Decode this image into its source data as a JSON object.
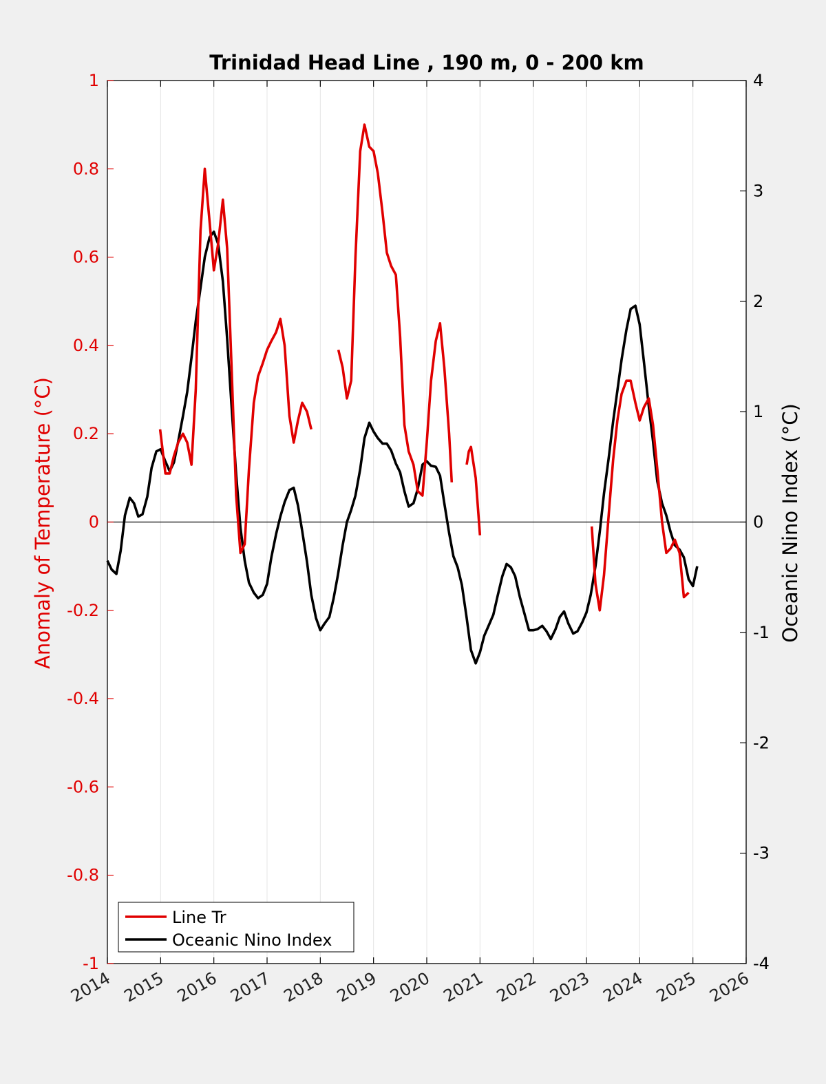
{
  "chart_data": {
    "type": "line",
    "title": "Trinidad Head Line , 190 m, 0 - 200 km",
    "ylabel_left": "Anomaly of Temperature (°C)",
    "ylabel_right": "Oceanic Nino Index (°C)",
    "xlim": [
      2014,
      2026
    ],
    "ylim_left": [
      -1,
      1
    ],
    "ylim_right": [
      -4,
      4
    ],
    "x_ticks": [
      "2014",
      "2015",
      "2016",
      "2017",
      "2018",
      "2019",
      "2020",
      "2021",
      "2022",
      "2023",
      "2024",
      "2025",
      "2026"
    ],
    "y_ticks_left": [
      "1",
      "0.8",
      "0.6",
      "0.4",
      "0.2",
      "0",
      "-0.2",
      "-0.4",
      "-0.6",
      "-0.8",
      "-1"
    ],
    "y_ticks_right": [
      "4",
      "3",
      "2",
      "1",
      "0",
      "-1",
      "-2",
      "-3",
      "-4"
    ],
    "grid": "vertical",
    "legend_position": "bottom-left",
    "colors": {
      "line_tr": "#e00000",
      "oni": "#000000",
      "axis_left": "#e00000",
      "axis_right": "#000000"
    },
    "series": [
      {
        "name": "Line Tr",
        "axis": "left",
        "segments": [
          [
            [
              2014.99,
              0.21
            ],
            [
              2015.09,
              0.11
            ],
            [
              2015.17,
              0.11
            ],
            [
              2015.25,
              0.15
            ],
            [
              2015.33,
              0.18
            ],
            [
              2015.42,
              0.2
            ],
            [
              2015.5,
              0.18
            ],
            [
              2015.58,
              0.13
            ],
            [
              2015.66,
              0.3
            ],
            [
              2015.75,
              0.66
            ],
            [
              2015.83,
              0.8
            ],
            [
              2015.92,
              0.68
            ],
            [
              2016.0,
              0.57
            ],
            [
              2016.08,
              0.63
            ],
            [
              2016.17,
              0.73
            ],
            [
              2016.25,
              0.62
            ],
            [
              2016.33,
              0.36
            ],
            [
              2016.42,
              0.06
            ],
            [
              2016.5,
              -0.07
            ],
            [
              2016.58,
              -0.05
            ],
            [
              2016.66,
              0.12
            ],
            [
              2016.75,
              0.27
            ],
            [
              2016.83,
              0.33
            ],
            [
              2016.92,
              0.36
            ],
            [
              2017.0,
              0.39
            ],
            [
              2017.08,
              0.41
            ],
            [
              2017.17,
              0.43
            ],
            [
              2017.25,
              0.46
            ],
            [
              2017.33,
              0.4
            ],
            [
              2017.42,
              0.24
            ],
            [
              2017.5,
              0.18
            ],
            [
              2017.58,
              0.23
            ],
            [
              2017.66,
              0.27
            ],
            [
              2017.75,
              0.25
            ],
            [
              2017.83,
              0.21
            ]
          ],
          [
            [
              2018.34,
              0.39
            ],
            [
              2018.42,
              0.35
            ],
            [
              2018.5,
              0.28
            ],
            [
              2018.58,
              0.32
            ],
            [
              2018.66,
              0.6
            ],
            [
              2018.75,
              0.84
            ],
            [
              2018.83,
              0.9
            ],
            [
              2018.92,
              0.85
            ],
            [
              2019.0,
              0.84
            ],
            [
              2019.08,
              0.79
            ],
            [
              2019.17,
              0.7
            ],
            [
              2019.25,
              0.61
            ],
            [
              2019.33,
              0.58
            ],
            [
              2019.42,
              0.56
            ],
            [
              2019.5,
              0.42
            ],
            [
              2019.58,
              0.22
            ],
            [
              2019.66,
              0.16
            ],
            [
              2019.75,
              0.13
            ],
            [
              2019.83,
              0.07
            ],
            [
              2019.92,
              0.06
            ],
            [
              2020.0,
              0.18
            ],
            [
              2020.08,
              0.32
            ],
            [
              2020.17,
              0.41
            ],
            [
              2020.25,
              0.45
            ],
            [
              2020.33,
              0.35
            ],
            [
              2020.42,
              0.2
            ],
            [
              2020.47,
              0.09
            ]
          ],
          [
            [
              2020.75,
              0.13
            ],
            [
              2020.79,
              0.16
            ],
            [
              2020.83,
              0.17
            ],
            [
              2020.92,
              0.1
            ],
            [
              2021.0,
              -0.03
            ]
          ],
          [
            [
              2023.1,
              -0.01
            ],
            [
              2023.17,
              -0.14
            ],
            [
              2023.25,
              -0.2
            ],
            [
              2023.33,
              -0.12
            ],
            [
              2023.42,
              0.02
            ],
            [
              2023.5,
              0.14
            ],
            [
              2023.58,
              0.23
            ],
            [
              2023.66,
              0.29
            ],
            [
              2023.75,
              0.32
            ],
            [
              2023.83,
              0.32
            ],
            [
              2023.92,
              0.27
            ],
            [
              2024.0,
              0.23
            ],
            [
              2024.08,
              0.26
            ],
            [
              2024.17,
              0.28
            ],
            [
              2024.25,
              0.22
            ],
            [
              2024.33,
              0.12
            ],
            [
              2024.42,
              0.0
            ],
            [
              2024.5,
              -0.07
            ],
            [
              2024.58,
              -0.06
            ],
            [
              2024.66,
              -0.04
            ],
            [
              2024.75,
              -0.07
            ],
            [
              2024.83,
              -0.17
            ],
            [
              2024.92,
              -0.16
            ]
          ]
        ]
      },
      {
        "name": "Oceanic Nino Index",
        "axis": "right",
        "segments": [
          [
            [
              2014.0,
              -0.35
            ],
            [
              2014.08,
              -0.43
            ],
            [
              2014.17,
              -0.47
            ],
            [
              2014.25,
              -0.26
            ],
            [
              2014.33,
              0.06
            ],
            [
              2014.42,
              0.22
            ],
            [
              2014.5,
              0.17
            ],
            [
              2014.58,
              0.05
            ],
            [
              2014.66,
              0.07
            ],
            [
              2014.75,
              0.23
            ],
            [
              2014.83,
              0.49
            ],
            [
              2014.92,
              0.64
            ],
            [
              2015.0,
              0.66
            ],
            [
              2015.08,
              0.56
            ],
            [
              2015.17,
              0.46
            ],
            [
              2015.25,
              0.54
            ],
            [
              2015.33,
              0.73
            ],
            [
              2015.42,
              0.96
            ],
            [
              2015.5,
              1.18
            ],
            [
              2015.58,
              1.49
            ],
            [
              2015.66,
              1.82
            ],
            [
              2015.75,
              2.12
            ],
            [
              2015.83,
              2.4
            ],
            [
              2015.92,
              2.58
            ],
            [
              2016.0,
              2.63
            ],
            [
              2016.08,
              2.52
            ],
            [
              2016.17,
              2.18
            ],
            [
              2016.25,
              1.66
            ],
            [
              2016.33,
              1.07
            ],
            [
              2016.42,
              0.43
            ],
            [
              2016.5,
              -0.05
            ],
            [
              2016.58,
              -0.35
            ],
            [
              2016.66,
              -0.55
            ],
            [
              2016.75,
              -0.64
            ],
            [
              2016.83,
              -0.69
            ],
            [
              2016.92,
              -0.66
            ],
            [
              2017.0,
              -0.56
            ],
            [
              2017.08,
              -0.32
            ],
            [
              2017.17,
              -0.11
            ],
            [
              2017.25,
              0.05
            ],
            [
              2017.33,
              0.18
            ],
            [
              2017.42,
              0.29
            ],
            [
              2017.5,
              0.31
            ],
            [
              2017.58,
              0.15
            ],
            [
              2017.66,
              -0.08
            ],
            [
              2017.75,
              -0.36
            ],
            [
              2017.83,
              -0.66
            ],
            [
              2017.92,
              -0.87
            ],
            [
              2018.0,
              -0.98
            ],
            [
              2018.08,
              -0.92
            ],
            [
              2018.17,
              -0.86
            ],
            [
              2018.25,
              -0.69
            ],
            [
              2018.33,
              -0.48
            ],
            [
              2018.42,
              -0.21
            ],
            [
              2018.5,
              0.0
            ],
            [
              2018.58,
              0.11
            ],
            [
              2018.66,
              0.24
            ],
            [
              2018.75,
              0.48
            ],
            [
              2018.83,
              0.76
            ],
            [
              2018.92,
              0.9
            ],
            [
              2019.0,
              0.82
            ],
            [
              2019.08,
              0.76
            ],
            [
              2019.17,
              0.71
            ],
            [
              2019.25,
              0.71
            ],
            [
              2019.33,
              0.65
            ],
            [
              2019.42,
              0.53
            ],
            [
              2019.5,
              0.45
            ],
            [
              2019.58,
              0.28
            ],
            [
              2019.66,
              0.14
            ],
            [
              2019.75,
              0.17
            ],
            [
              2019.83,
              0.3
            ],
            [
              2019.92,
              0.52
            ],
            [
              2020.0,
              0.55
            ],
            [
              2020.08,
              0.51
            ],
            [
              2020.17,
              0.5
            ],
            [
              2020.25,
              0.42
            ],
            [
              2020.33,
              0.17
            ],
            [
              2020.42,
              -0.1
            ],
            [
              2020.5,
              -0.31
            ],
            [
              2020.58,
              -0.41
            ],
            [
              2020.66,
              -0.57
            ],
            [
              2020.75,
              -0.87
            ],
            [
              2020.83,
              -1.16
            ],
            [
              2020.92,
              -1.28
            ],
            [
              2021.0,
              -1.18
            ],
            [
              2021.08,
              -1.03
            ],
            [
              2021.17,
              -0.93
            ],
            [
              2021.25,
              -0.84
            ],
            [
              2021.33,
              -0.67
            ],
            [
              2021.42,
              -0.49
            ],
            [
              2021.5,
              -0.38
            ],
            [
              2021.58,
              -0.41
            ],
            [
              2021.66,
              -0.49
            ],
            [
              2021.75,
              -0.68
            ],
            [
              2021.83,
              -0.82
            ],
            [
              2021.92,
              -0.98
            ],
            [
              2022.0,
              -0.98
            ],
            [
              2022.08,
              -0.97
            ],
            [
              2022.17,
              -0.94
            ],
            [
              2022.25,
              -0.99
            ],
            [
              2022.33,
              -1.06
            ],
            [
              2022.42,
              -0.97
            ],
            [
              2022.5,
              -0.86
            ],
            [
              2022.58,
              -0.81
            ],
            [
              2022.66,
              -0.92
            ],
            [
              2022.75,
              -1.01
            ],
            [
              2022.83,
              -0.99
            ],
            [
              2022.92,
              -0.91
            ],
            [
              2023.0,
              -0.82
            ],
            [
              2023.08,
              -0.66
            ],
            [
              2023.17,
              -0.4
            ],
            [
              2023.25,
              -0.09
            ],
            [
              2023.33,
              0.26
            ],
            [
              2023.42,
              0.59
            ],
            [
              2023.5,
              0.91
            ],
            [
              2023.58,
              1.19
            ],
            [
              2023.66,
              1.47
            ],
            [
              2023.75,
              1.74
            ],
            [
              2023.83,
              1.93
            ],
            [
              2023.92,
              1.96
            ],
            [
              2024.0,
              1.79
            ],
            [
              2024.08,
              1.45
            ],
            [
              2024.17,
              1.05
            ],
            [
              2024.25,
              0.73
            ],
            [
              2024.33,
              0.37
            ],
            [
              2024.42,
              0.17
            ],
            [
              2024.5,
              0.06
            ],
            [
              2024.58,
              -0.09
            ],
            [
              2024.66,
              -0.21
            ],
            [
              2024.75,
              -0.25
            ],
            [
              2024.83,
              -0.32
            ],
            [
              2024.92,
              -0.52
            ],
            [
              2025.0,
              -0.58
            ],
            [
              2025.08,
              -0.4
            ]
          ]
        ]
      }
    ]
  },
  "legend": {
    "items": [
      {
        "label": "Line Tr",
        "color": "#e00000"
      },
      {
        "label": "Oceanic Nino Index",
        "color": "#000000"
      }
    ]
  }
}
